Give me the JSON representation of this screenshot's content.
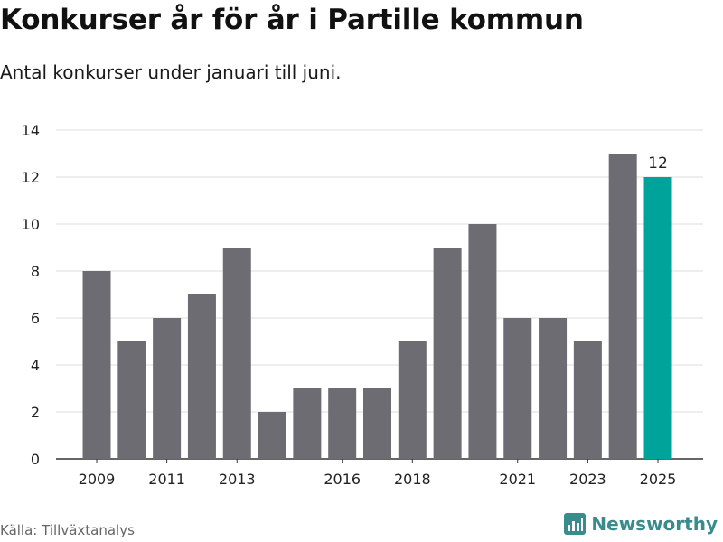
{
  "title": "Konkurser år för år i Partille kommun",
  "subtitle": "Antal konkurser under januari till juni.",
  "source": "Källa: Tillväxtanalys",
  "brand": {
    "name": "Newsworthy",
    "icon": "newsworthy-logo-icon"
  },
  "colors": {
    "bar": "#6d6c73",
    "highlight": "#00a39a",
    "grid": "#dddddd",
    "axis": "#333333",
    "brand": "#3a8c8c"
  },
  "chart_data": {
    "type": "bar",
    "categories": [
      "2009",
      "2010",
      "2011",
      "2012",
      "2013",
      "2014",
      "2015",
      "2016",
      "2017",
      "2018",
      "2019",
      "2020",
      "2021",
      "2022",
      "2023",
      "2024",
      "2025"
    ],
    "values": [
      8,
      5,
      6,
      7,
      9,
      2,
      3,
      3,
      3,
      5,
      9,
      10,
      6,
      6,
      5,
      13,
      12
    ],
    "highlight_index": 16,
    "highlight_label": "12",
    "x_tick_labels": [
      "2009",
      "2011",
      "2013",
      "2016",
      "2018",
      "2021",
      "2023",
      "2025"
    ],
    "y_ticks": [
      0,
      2,
      4,
      6,
      8,
      10,
      12,
      14
    ],
    "ylim": [
      0,
      14
    ],
    "grid": true,
    "xlabel": "",
    "ylabel": ""
  }
}
